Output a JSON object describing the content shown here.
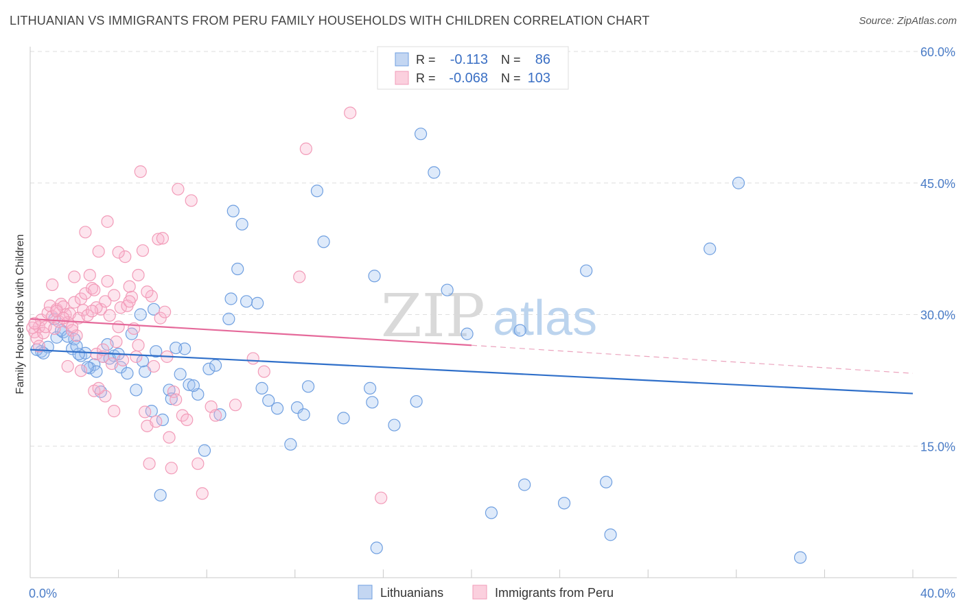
{
  "title": "LITHUANIAN VS IMMIGRANTS FROM PERU FAMILY HOUSEHOLDS WITH CHILDREN CORRELATION CHART",
  "source": "Source: ZipAtlas.com",
  "watermark": {
    "zip": "ZIP",
    "atlas": "atlas"
  },
  "chart_data": {
    "type": "scatter",
    "title": "LITHUANIAN VS IMMIGRANTS FROM PERU FAMILY HOUSEHOLDS WITH CHILDREN CORRELATION CHART",
    "xlabel": "",
    "ylabel": "Family Households with Children",
    "xlim": [
      0,
      40
    ],
    "ylim": [
      0,
      60
    ],
    "x_tick_labels": [
      "0.0%",
      "40.0%"
    ],
    "y_ticks": [
      15,
      30,
      45,
      60
    ],
    "y_tick_labels": [
      "15.0%",
      "30.0%",
      "45.0%",
      "60.0%"
    ],
    "grid": true,
    "legend": [
      {
        "name": "Lithuanians",
        "color": "#6f9fe0",
        "r_label": "R =",
        "r": "-0.113",
        "n_label": "N =",
        "n": "86"
      },
      {
        "name": "Immigrants from Peru",
        "color": "#f29bb8",
        "r_label": "R =",
        "r": "-0.068",
        "n_label": "N =",
        "n": "103"
      }
    ],
    "series": [
      {
        "name": "Lithuanians",
        "color": "#6f9fe0",
        "trend": {
          "x0": 0,
          "y0": 26.0,
          "x1": 40,
          "y1": 21.0,
          "dashed_from": null
        },
        "points": [
          [
            0.5,
            25.8
          ],
          [
            0.8,
            26.3
          ],
          [
            1.2,
            27.4
          ],
          [
            1.5,
            28.0
          ],
          [
            1.9,
            26.1
          ],
          [
            2.0,
            27.2
          ],
          [
            2.3,
            25.3
          ],
          [
            2.5,
            25.6
          ],
          [
            2.7,
            23.9
          ],
          [
            2.9,
            24.3
          ],
          [
            3.2,
            21.2
          ],
          [
            3.3,
            25.2
          ],
          [
            3.5,
            26.6
          ],
          [
            3.8,
            25.3
          ],
          [
            4.1,
            24.0
          ],
          [
            4.6,
            27.8
          ],
          [
            4.8,
            21.4
          ],
          [
            5.2,
            23.5
          ],
          [
            5.1,
            24.7
          ],
          [
            5.5,
            19.0
          ],
          [
            6.3,
            21.4
          ],
          [
            6.4,
            20.4
          ],
          [
            5.7,
            25.8
          ],
          [
            7.0,
            26.1
          ],
          [
            7.6,
            20.9
          ],
          [
            8.1,
            23.8
          ],
          [
            7.9,
            14.5
          ],
          [
            9.0,
            29.5
          ],
          [
            9.1,
            31.8
          ],
          [
            9.2,
            41.8
          ],
          [
            9.6,
            40.3
          ],
          [
            9.4,
            35.2
          ],
          [
            10.3,
            31.3
          ],
          [
            10.5,
            21.6
          ],
          [
            10.8,
            20.2
          ],
          [
            11.2,
            19.3
          ],
          [
            12.1,
            19.4
          ],
          [
            12.4,
            18.6
          ],
          [
            12.6,
            21.8
          ],
          [
            13.0,
            44.1
          ],
          [
            13.3,
            38.3
          ],
          [
            14.2,
            18.2
          ],
          [
            15.4,
            21.6
          ],
          [
            15.5,
            20.0
          ],
          [
            15.6,
            34.4
          ],
          [
            15.7,
            3.4
          ],
          [
            16.5,
            17.4
          ],
          [
            17.5,
            20.1
          ],
          [
            17.7,
            50.6
          ],
          [
            18.3,
            46.2
          ],
          [
            18.9,
            32.8
          ],
          [
            19.8,
            27.8
          ],
          [
            20.9,
            7.4
          ],
          [
            22.4,
            10.6
          ],
          [
            22.2,
            28.2
          ],
          [
            24.2,
            8.5
          ],
          [
            25.2,
            35.0
          ],
          [
            26.1,
            10.9
          ],
          [
            26.3,
            4.9
          ],
          [
            30.8,
            37.5
          ],
          [
            32.1,
            45.0
          ],
          [
            34.9,
            2.3
          ],
          [
            5.0,
            30.0
          ],
          [
            5.6,
            30.6
          ],
          [
            2.2,
            25.5
          ],
          [
            1.1,
            29.5
          ],
          [
            3.0,
            23.5
          ],
          [
            4.4,
            23.3
          ],
          [
            6.0,
            18.0
          ],
          [
            6.8,
            23.2
          ],
          [
            7.2,
            22.0
          ],
          [
            8.6,
            18.6
          ],
          [
            0.3,
            26.0
          ],
          [
            0.6,
            25.6
          ],
          [
            1.4,
            28.2
          ],
          [
            2.6,
            24.0
          ],
          [
            3.6,
            25.0
          ],
          [
            4.0,
            25.5
          ],
          [
            1.7,
            27.5
          ],
          [
            6.6,
            26.2
          ],
          [
            7.4,
            21.9
          ],
          [
            5.9,
            9.4
          ],
          [
            11.8,
            15.2
          ],
          [
            9.8,
            31.5
          ],
          [
            8.4,
            24.2
          ],
          [
            2.1,
            26.4
          ]
        ]
      },
      {
        "name": "Immigrants from Peru",
        "color": "#f29bb8",
        "trend": {
          "x0": 0,
          "y0": 29.5,
          "x1": 20,
          "y1": 26.5,
          "dashed_to": {
            "x": 40,
            "y": 23.3
          }
        },
        "points": [
          [
            0.2,
            28.0
          ],
          [
            0.3,
            27.3
          ],
          [
            0.4,
            28.6
          ],
          [
            0.5,
            29.4
          ],
          [
            0.6,
            27.9
          ],
          [
            0.7,
            28.6
          ],
          [
            0.8,
            30.2
          ],
          [
            0.9,
            31.0
          ],
          [
            1.0,
            29.8
          ],
          [
            1.1,
            28.4
          ],
          [
            1.2,
            30.6
          ],
          [
            1.3,
            29.2
          ],
          [
            1.4,
            31.2
          ],
          [
            1.5,
            30.9
          ],
          [
            1.6,
            30.0
          ],
          [
            1.7,
            29.1
          ],
          [
            1.8,
            30.1
          ],
          [
            1.9,
            28.2
          ],
          [
            2.0,
            31.4
          ],
          [
            2.1,
            27.6
          ],
          [
            2.2,
            29.6
          ],
          [
            2.3,
            31.8
          ],
          [
            2.4,
            30.5
          ],
          [
            2.5,
            32.4
          ],
          [
            2.6,
            29.9
          ],
          [
            2.7,
            34.5
          ],
          [
            2.8,
            33.0
          ],
          [
            2.9,
            32.8
          ],
          [
            3.0,
            25.5
          ],
          [
            3.1,
            37.2
          ],
          [
            3.2,
            30.6
          ],
          [
            3.3,
            25.2
          ],
          [
            3.4,
            31.5
          ],
          [
            3.5,
            33.8
          ],
          [
            3.6,
            29.9
          ],
          [
            3.7,
            24.4
          ],
          [
            3.8,
            32.2
          ],
          [
            3.9,
            26.9
          ],
          [
            4.0,
            28.6
          ],
          [
            4.1,
            30.8
          ],
          [
            4.2,
            24.8
          ],
          [
            4.3,
            36.6
          ],
          [
            4.4,
            31.0
          ],
          [
            4.5,
            33.2
          ],
          [
            4.6,
            32.0
          ],
          [
            4.7,
            28.4
          ],
          [
            4.8,
            25.2
          ],
          [
            4.9,
            34.5
          ],
          [
            5.0,
            46.3
          ],
          [
            5.1,
            37.3
          ],
          [
            5.2,
            18.9
          ],
          [
            5.3,
            17.3
          ],
          [
            5.4,
            13.0
          ],
          [
            5.5,
            32.1
          ],
          [
            5.6,
            24.1
          ],
          [
            5.7,
            17.8
          ],
          [
            5.8,
            38.6
          ],
          [
            5.9,
            29.6
          ],
          [
            6.0,
            38.7
          ],
          [
            6.1,
            30.3
          ],
          [
            6.2,
            25.2
          ],
          [
            6.3,
            16.0
          ],
          [
            6.4,
            12.5
          ],
          [
            6.5,
            21.2
          ],
          [
            6.6,
            20.3
          ],
          [
            6.7,
            44.3
          ],
          [
            6.9,
            18.5
          ],
          [
            7.1,
            18.0
          ],
          [
            7.3,
            43.0
          ],
          [
            7.6,
            13.0
          ],
          [
            7.8,
            9.6
          ],
          [
            8.2,
            19.5
          ],
          [
            8.4,
            18.5
          ],
          [
            9.3,
            19.7
          ],
          [
            10.1,
            25.0
          ],
          [
            10.6,
            23.5
          ],
          [
            12.2,
            34.3
          ],
          [
            12.5,
            48.9
          ],
          [
            14.5,
            53.0
          ],
          [
            15.9,
            9.1
          ],
          [
            1.0,
            33.4
          ],
          [
            1.2,
            30.4
          ],
          [
            2.0,
            34.3
          ],
          [
            2.5,
            39.4
          ],
          [
            3.0,
            30.8
          ],
          [
            3.5,
            40.6
          ],
          [
            4.0,
            37.1
          ],
          [
            4.5,
            31.5
          ],
          [
            2.3,
            23.6
          ],
          [
            2.9,
            21.3
          ],
          [
            3.4,
            20.7
          ],
          [
            3.8,
            19.0
          ],
          [
            1.5,
            29.6
          ],
          [
            1.9,
            28.6
          ],
          [
            0.4,
            26.4
          ],
          [
            0.1,
            28.5
          ],
          [
            0.2,
            29.0
          ],
          [
            2.8,
            30.4
          ],
          [
            3.3,
            26.0
          ],
          [
            4.9,
            26.5
          ],
          [
            5.3,
            32.6
          ],
          [
            3.1,
            21.6
          ],
          [
            1.7,
            24.1
          ]
        ]
      }
    ]
  }
}
